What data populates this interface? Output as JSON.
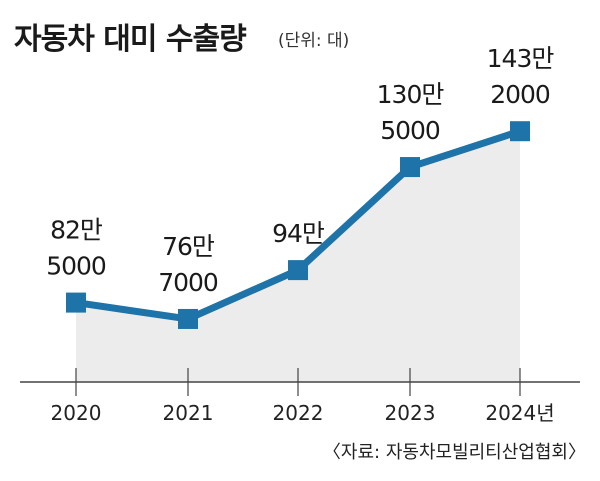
{
  "title": "자동차 대미 수출량",
  "unit": "(단위: 대)",
  "source": "〈자료: 자동차모빌리티산업협회〉",
  "colors": {
    "line": "#1e73a8",
    "area": "#ececec",
    "axis": "#444444"
  },
  "chart_data": {
    "type": "line",
    "x": [
      "2020",
      "2021",
      "2022",
      "2023",
      "2024년"
    ],
    "values": [
      825000,
      767000,
      940000,
      1305000,
      1432000
    ],
    "data_labels": [
      [
        "82만",
        "5000"
      ],
      [
        "76만",
        "7000"
      ],
      [
        "94만"
      ],
      [
        "130만",
        "5000"
      ],
      [
        "143만",
        "2000"
      ]
    ],
    "xlabel": "",
    "ylabel": "",
    "ylim": [
      0,
      1600000
    ],
    "grid": false,
    "legend": "none"
  }
}
